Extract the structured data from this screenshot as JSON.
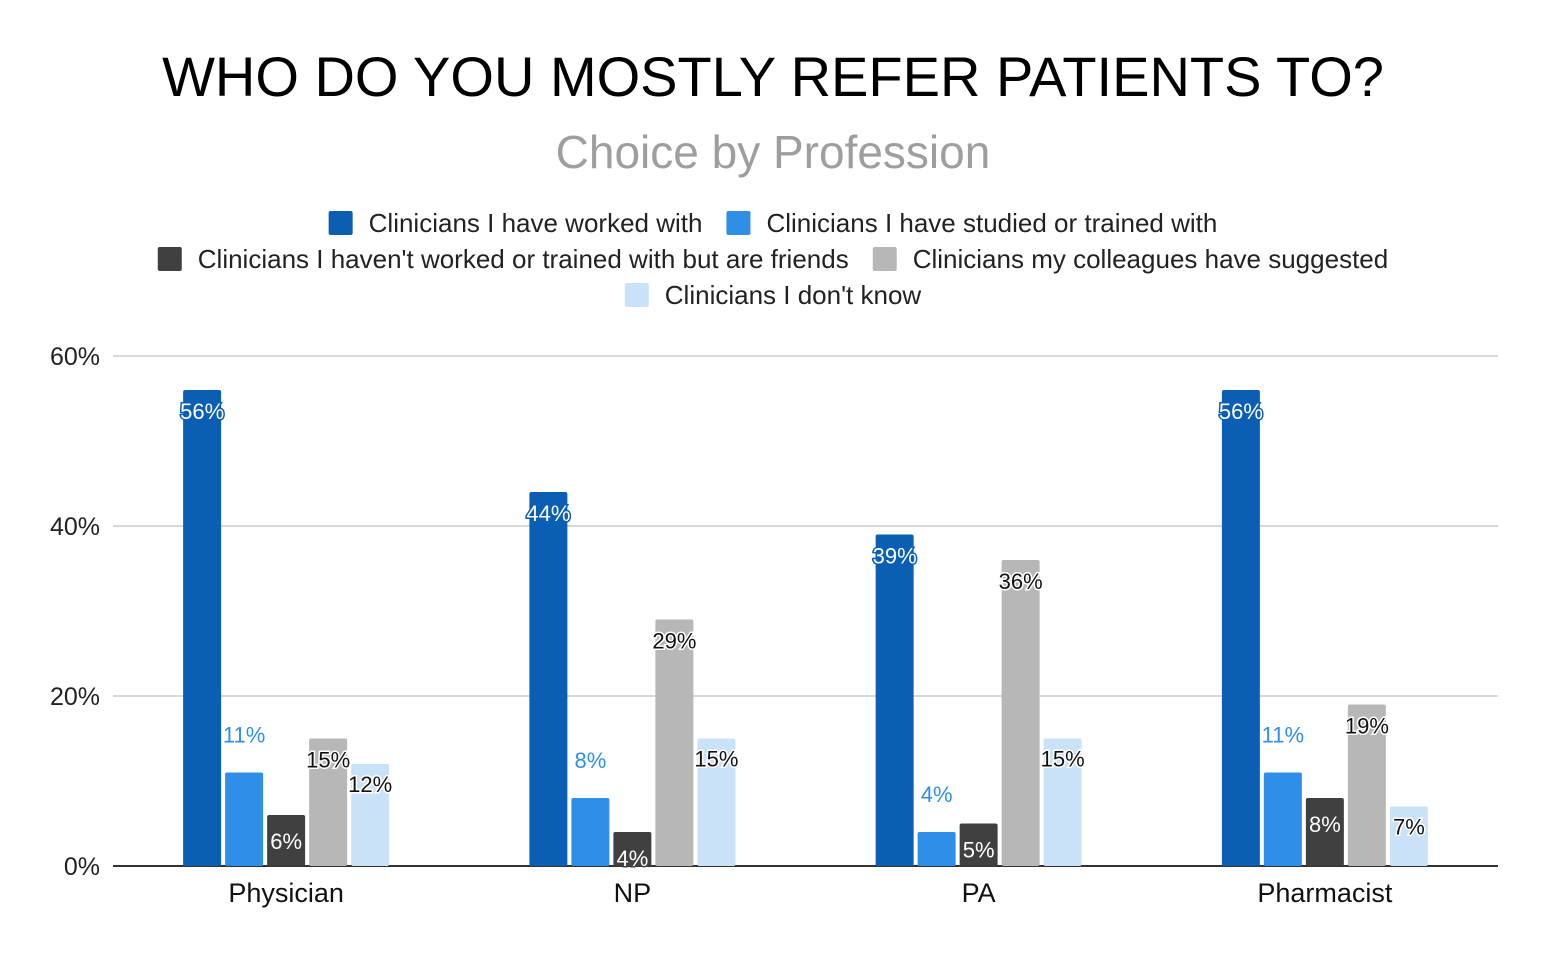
{
  "chart_data": {
    "type": "bar",
    "title": "WHO DO YOU MOSTLY REFER PATIENTS TO?",
    "subtitle": "Choice by Profession",
    "xlabel": "",
    "ylabel": "",
    "categories": [
      "Physician",
      "NP",
      "PA",
      "Pharmacist"
    ],
    "ylim": [
      0,
      60
    ],
    "yticks": [
      0,
      20,
      40,
      60
    ],
    "ytick_labels": [
      "0%",
      "20%",
      "40%",
      "60%"
    ],
    "grid": true,
    "legend_position": "top",
    "series": [
      {
        "name": "Clinicians I have worked with",
        "color": "#0a5fb4",
        "values": [
          56,
          44,
          39,
          56
        ],
        "labels": [
          "56%",
          "44%",
          "39%",
          "56%"
        ]
      },
      {
        "name": "Clinicians I have studied or trained with",
        "color": "#2f8fe8",
        "values": [
          11,
          8,
          4,
          11
        ],
        "labels": [
          "11%",
          "8%",
          "4%",
          "11%"
        ]
      },
      {
        "name": "Clinicians I haven't worked or trained with but are friends",
        "color": "#404040",
        "values": [
          6,
          4,
          5,
          8
        ],
        "labels": [
          "6%",
          "4%",
          "5%",
          "8%"
        ]
      },
      {
        "name": "Clinicians my colleagues have suggested",
        "color": "#b7b7b7",
        "values": [
          15,
          29,
          36,
          19
        ],
        "labels": [
          "15%",
          "29%",
          "36%",
          "19%"
        ]
      },
      {
        "name": "Clinicians I don't know",
        "color": "#c9e2f8",
        "values": [
          12,
          15,
          15,
          7
        ],
        "labels": [
          "12%",
          "15%",
          "15%",
          "7%"
        ]
      }
    ]
  }
}
